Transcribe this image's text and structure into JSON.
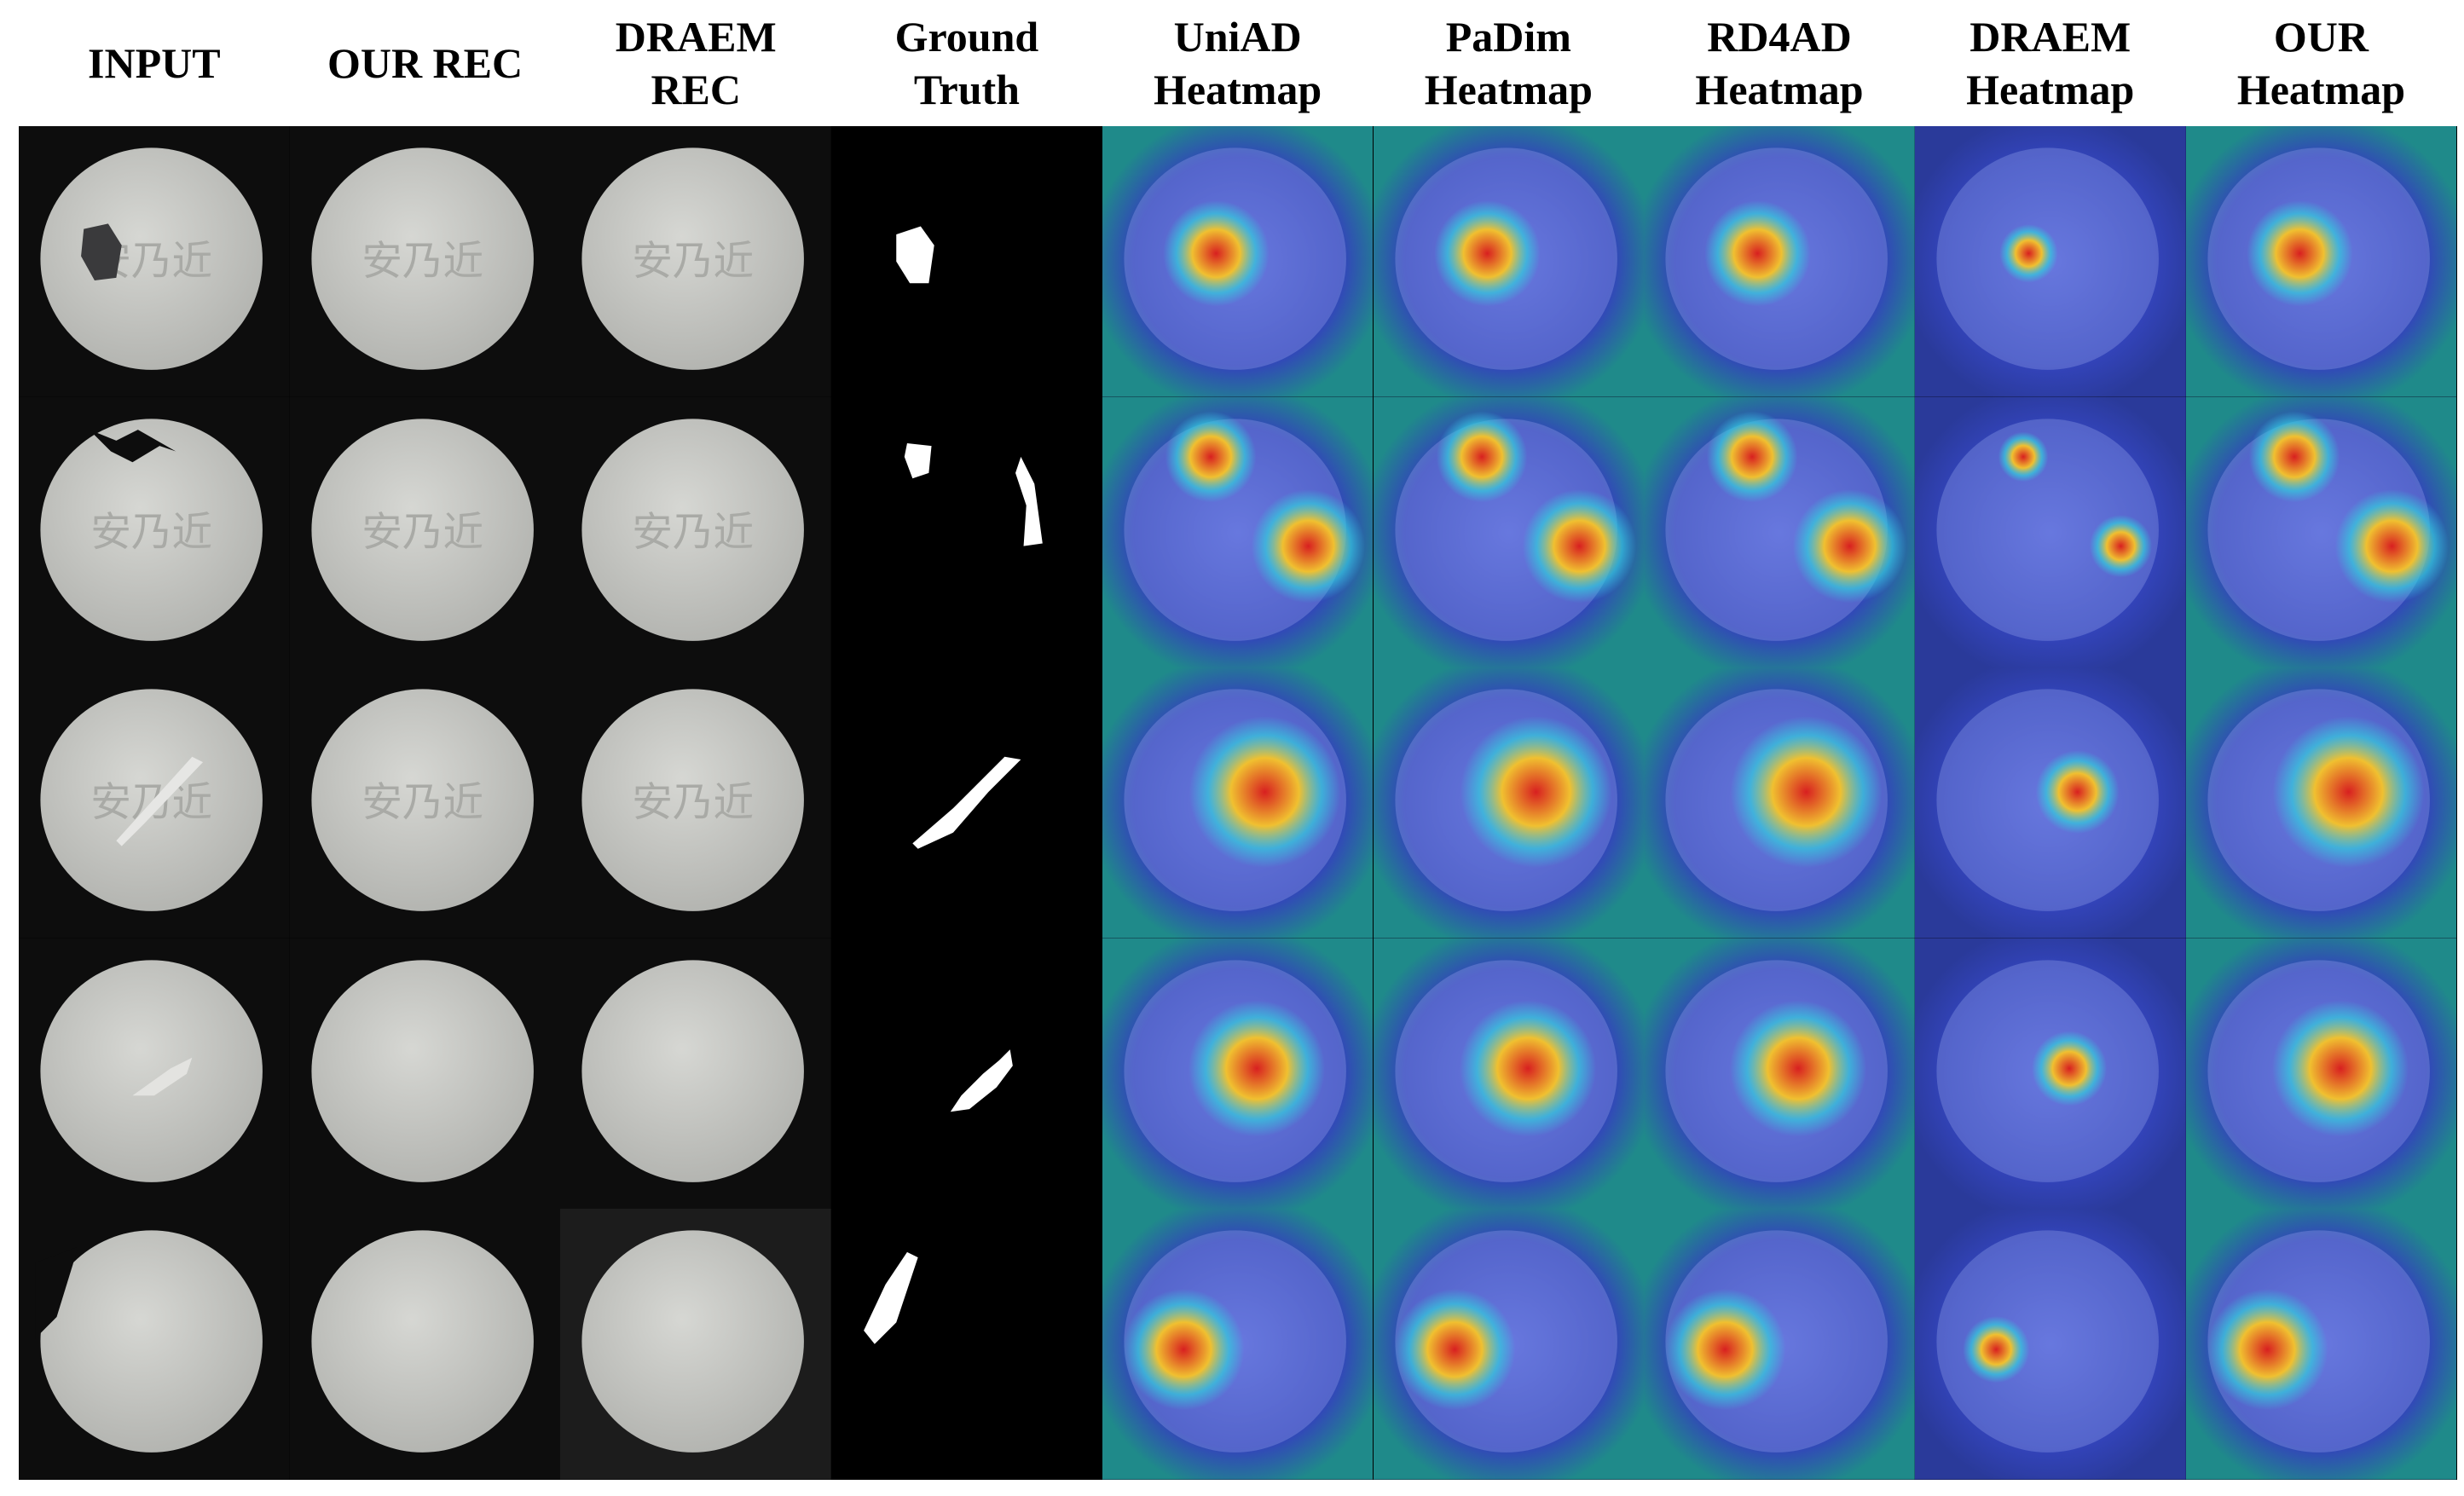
{
  "figure": {
    "columns": [
      {
        "id": "input",
        "title": "INPUT",
        "kind": "photo"
      },
      {
        "id": "our_rec",
        "title": "OUR REC",
        "kind": "photo"
      },
      {
        "id": "draem_rec",
        "title": "DRAEM\nREC",
        "kind": "photo"
      },
      {
        "id": "gt",
        "title": "Ground\nTruth",
        "kind": "mask"
      },
      {
        "id": "uniad",
        "title": "UniAD\nHeatmap",
        "kind": "heatmap"
      },
      {
        "id": "padim",
        "title": "PaDim\nHeatmap",
        "kind": "heatmap"
      },
      {
        "id": "rd4ad",
        "title": "RD4AD\nHeatmap",
        "kind": "heatmap"
      },
      {
        "id": "draem_hm",
        "title": "DRAEM\nHeatmap",
        "kind": "heatmap"
      },
      {
        "id": "our_hm",
        "title": "OUR\nHeatmap",
        "kind": "heatmap"
      }
    ],
    "rows": [
      {
        "defect": "contamination",
        "pill_text": "安乃近"
      },
      {
        "defect": "chip",
        "pill_text": "安乃近"
      },
      {
        "defect": "scratch",
        "pill_text": "安乃近"
      },
      {
        "defect": "crack",
        "pill_text": ""
      },
      {
        "defect": "chip",
        "pill_text": ""
      }
    ],
    "colors": {
      "background": "#000000",
      "pill": "#c9cac6",
      "mask": "#ffffff",
      "heatmap_low": "#2633b8",
      "heatmap_mid": "#33ccdd",
      "heatmap_high": "#d82020"
    }
  }
}
